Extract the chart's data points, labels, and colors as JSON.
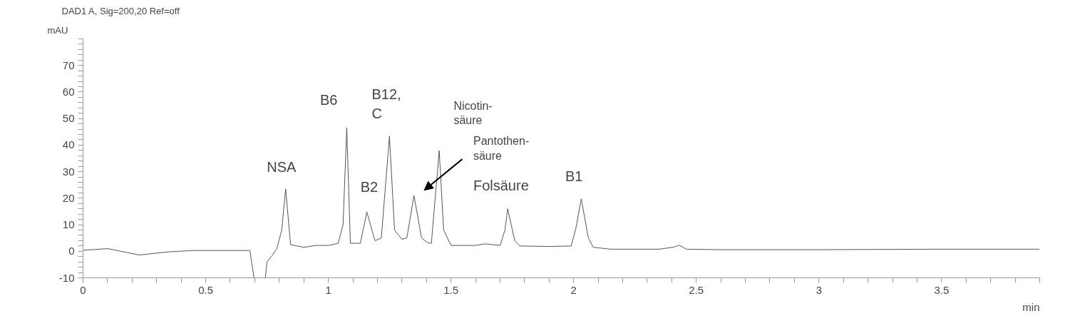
{
  "chart_data": {
    "type": "line",
    "title": "DAD1 A, Sig=200,20 Ref=off",
    "xlabel": "min",
    "ylabel": "mAU",
    "xlim": [
      0,
      3.9
    ],
    "ylim": [
      -10,
      80
    ],
    "xticks": [
      0,
      {
        "value": 0.1,
        "label": null
      },
      {
        "value": 0.2,
        "label": null
      },
      {
        "value": 0.3,
        "label": null
      },
      {
        "value": 0.4,
        "label": null
      },
      0.5,
      {
        "value": 0.6,
        "label": null
      },
      {
        "value": 0.7,
        "label": null
      },
      {
        "value": 0.8,
        "label": null
      },
      {
        "value": 0.9,
        "label": null
      },
      1,
      {
        "value": 1.1,
        "label": null
      },
      {
        "value": 1.2,
        "label": null
      },
      {
        "value": 1.3,
        "label": null
      },
      {
        "value": 1.4,
        "label": null
      },
      1.5,
      {
        "value": 1.6,
        "label": null
      },
      {
        "value": 1.7,
        "label": null
      },
      {
        "value": 1.8,
        "label": null
      },
      {
        "value": 1.9,
        "label": null
      },
      2,
      {
        "value": 2.1,
        "label": null
      },
      {
        "value": 2.2,
        "label": null
      },
      {
        "value": 2.3,
        "label": null
      },
      {
        "value": 2.4,
        "label": null
      },
      2.5,
      {
        "value": 2.6,
        "label": null
      },
      {
        "value": 2.7,
        "label": null
      },
      {
        "value": 2.8,
        "label": null
      },
      {
        "value": 2.9,
        "label": null
      },
      3,
      {
        "value": 3.1,
        "label": null
      },
      {
        "value": 3.2,
        "label": null
      },
      {
        "value": 3.3,
        "label": null
      },
      {
        "value": 3.4,
        "label": null
      },
      3.5,
      {
        "value": 3.6,
        "label": null
      },
      {
        "value": 3.7,
        "label": null
      },
      {
        "value": 3.8,
        "label": null
      },
      {
        "value": 3.9,
        "label": null
      }
    ],
    "yticks": [
      -10,
      {
        "value": -8,
        "label": null
      },
      {
        "value": -6,
        "label": null
      },
      {
        "value": -4,
        "label": null
      },
      {
        "value": -2,
        "label": null
      },
      0,
      {
        "value": 2,
        "label": null
      },
      {
        "value": 4,
        "label": null
      },
      {
        "value": 6,
        "label": null
      },
      {
        "value": 8,
        "label": null
      },
      10,
      {
        "value": 12,
        "label": null
      },
      {
        "value": 14,
        "label": null
      },
      {
        "value": 16,
        "label": null
      },
      {
        "value": 18,
        "label": null
      },
      20,
      {
        "value": 22,
        "label": null
      },
      {
        "value": 24,
        "label": null
      },
      {
        "value": 26,
        "label": null
      },
      {
        "value": 28,
        "label": null
      },
      30,
      {
        "value": 32,
        "label": null
      },
      {
        "value": 34,
        "label": null
      },
      {
        "value": 36,
        "label": null
      },
      {
        "value": 38,
        "label": null
      },
      40,
      {
        "value": 42,
        "label": null
      },
      {
        "value": 44,
        "label": null
      },
      {
        "value": 46,
        "label": null
      },
      {
        "value": 48,
        "label": null
      },
      50,
      {
        "value": 52,
        "label": null
      },
      {
        "value": 54,
        "label": null
      },
      {
        "value": 56,
        "label": null
      },
      {
        "value": 58,
        "label": null
      },
      60,
      {
        "value": 62,
        "label": null
      },
      {
        "value": 64,
        "label": null
      },
      {
        "value": 66,
        "label": null
      },
      {
        "value": 68,
        "label": null
      },
      70,
      {
        "value": 72,
        "label": null
      },
      {
        "value": 74,
        "label": null
      },
      {
        "value": 76,
        "label": null
      },
      {
        "value": 78,
        "label": null
      },
      {
        "value": 80,
        "label": null
      }
    ],
    "grid": false,
    "series": [
      {
        "color": "#555555",
        "x": [
          0,
          0.1,
          0.23,
          0.35,
          0.45,
          0.68,
          0.697,
          0.72,
          0.743,
          0.75,
          0.77,
          0.79,
          0.81,
          0.826,
          0.846,
          0.9,
          0.95,
          1.0,
          1.04,
          1.06,
          1.075,
          1.09,
          1.13,
          1.157,
          1.19,
          1.216,
          1.249,
          1.27,
          1.3,
          1.32,
          1.349,
          1.38,
          1.405,
          1.42,
          1.452,
          1.47,
          1.5,
          1.6,
          1.64,
          1.7,
          1.72,
          1.731,
          1.76,
          1.78,
          1.9,
          1.99,
          2.01,
          2.031,
          2.06,
          2.08,
          2.15,
          2.35,
          2.41,
          2.43,
          2.46,
          2.6,
          3.0,
          3.5,
          3.9
        ],
        "values": [
          0.4,
          1.0,
          -1.4,
          -0.2,
          0.3,
          0.3,
          -10,
          null,
          -10,
          -4,
          -1.7,
          1,
          8,
          23.5,
          2.5,
          1.5,
          2.2,
          2.2,
          3,
          10,
          46.5,
          3,
          3,
          14.8,
          4,
          5,
          43.3,
          8,
          4.5,
          5,
          21,
          5,
          3.2,
          3,
          37.9,
          8,
          2.2,
          2.2,
          2.8,
          2.2,
          8,
          16,
          4,
          2,
          1.8,
          2,
          9,
          19.8,
          5,
          1.5,
          0.8,
          0.8,
          1.6,
          2.3,
          0.8,
          0.6,
          0.6,
          0.8,
          0.8
        ]
      }
    ],
    "annotations": [
      {
        "text": "NSA",
        "x": 0.826,
        "y": 23.5
      },
      {
        "text": "B6",
        "x": 1.075,
        "y": 46.5
      },
      {
        "text": "B12,\nC",
        "x": 1.249,
        "y": 43.3
      },
      {
        "text": "Nicotin-\nsäure",
        "x": 1.452,
        "y": 37.9
      },
      "Pantothen-\nsäure",
      {
        "text": "B2",
        "x": 1.157,
        "y": 14.8
      },
      {
        "text": "Folsäure",
        "x": 1.731,
        "y": 16
      },
      {
        "text": "B1",
        "x": 2.031,
        "y": 19.8
      }
    ]
  }
}
